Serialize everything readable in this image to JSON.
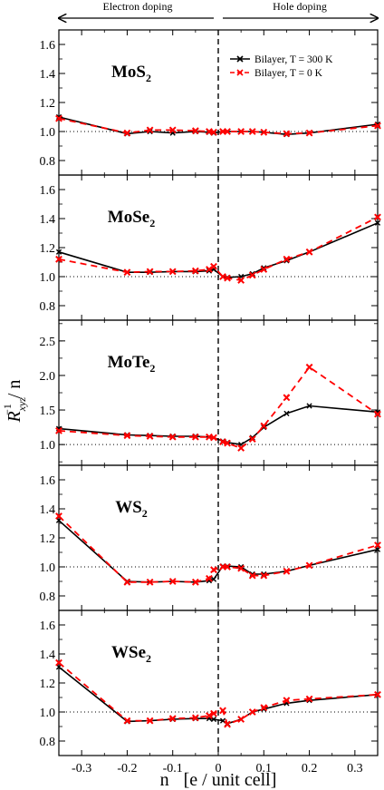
{
  "header": {
    "left": "Electron doping",
    "right": "Hole doping"
  },
  "xlabel_n": "n",
  "xlabel_rest": "[e / unit cell]",
  "ylabel": {
    "main": "R",
    "sup": "−1",
    "sub": "xyz",
    "suffix": "/ n"
  },
  "legend": [
    {
      "label": "Bilayer, T = 300 K",
      "color": "#000000",
      "dashed": false
    },
    {
      "label": "Bilayer, T = 0 K",
      "color": "#ff0000",
      "dashed": true
    }
  ],
  "chart_data": [
    {
      "type": "line",
      "name_main": "MoS",
      "name_sub": "2",
      "xlim": [
        -0.35,
        0.35
      ],
      "ylim": [
        0.7,
        1.7
      ],
      "yticks": [
        "0.8",
        "1.0",
        "1.2",
        "1.4",
        "1.6"
      ],
      "reference_line_y": 1.0,
      "series": [
        {
          "label": "Bilayer, T = 300 K",
          "x": [
            -0.35,
            -0.2,
            -0.15,
            -0.1,
            -0.05,
            -0.02,
            -0.01,
            0.01,
            0.02,
            0.05,
            0.075,
            0.1,
            0.15,
            0.2,
            0.35
          ],
          "y": [
            1.1,
            0.985,
            1.0,
            0.99,
            1.0,
            0.995,
            0.99,
            1.0,
            1.0,
            1.0,
            1.0,
            0.995,
            0.98,
            0.99,
            1.05
          ]
        },
        {
          "label": "Bilayer, T = 0 K",
          "x": [
            -0.35,
            -0.2,
            -0.15,
            -0.1,
            -0.05,
            -0.02,
            -0.01,
            0.01,
            0.02,
            0.05,
            0.075,
            0.1,
            0.15,
            0.2,
            0.35
          ],
          "y": [
            1.09,
            0.99,
            1.01,
            1.01,
            1.005,
            1.0,
            0.995,
            1.0,
            1.0,
            1.0,
            1.0,
            0.995,
            0.985,
            0.99,
            1.04
          ]
        }
      ]
    },
    {
      "type": "line",
      "name_main": "MoSe",
      "name_sub": "2",
      "xlim": [
        -0.35,
        0.35
      ],
      "ylim": [
        0.7,
        1.7
      ],
      "yticks": [
        "0.8",
        "1.0",
        "1.2",
        "1.4",
        "1.6"
      ],
      "reference_line_y": 1.0,
      "series": [
        {
          "label": "Bilayer, T = 300 K",
          "x": [
            -0.35,
            -0.2,
            -0.15,
            -0.1,
            -0.05,
            -0.02,
            -0.01,
            0.01,
            0.02,
            0.05,
            0.075,
            0.1,
            0.15,
            0.2,
            0.35
          ],
          "y": [
            1.17,
            1.03,
            1.03,
            1.035,
            1.035,
            1.04,
            1.05,
            1.0,
            0.995,
            1.0,
            1.02,
            1.06,
            1.11,
            1.17,
            1.37
          ]
        },
        {
          "label": "Bilayer, T = 0 K",
          "x": [
            -0.35,
            -0.2,
            -0.15,
            -0.1,
            -0.05,
            -0.02,
            -0.01,
            0.01,
            0.02,
            0.05,
            0.075,
            0.1,
            0.15,
            0.2,
            0.35
          ],
          "y": [
            1.12,
            1.03,
            1.035,
            1.035,
            1.04,
            1.05,
            1.07,
            1.0,
            0.99,
            0.975,
            1.01,
            1.05,
            1.12,
            1.17,
            1.41
          ]
        }
      ]
    },
    {
      "type": "line",
      "name_main": "MoTe",
      "name_sub": "2",
      "xlim": [
        -0.35,
        0.35
      ],
      "ylim": [
        0.7,
        2.8
      ],
      "yticks": [
        "1.0",
        "1.5",
        "2.0",
        "2.5"
      ],
      "reference_line_y": 1.0,
      "series": [
        {
          "label": "Bilayer, T = 300 K",
          "x": [
            -0.35,
            -0.2,
            -0.15,
            -0.1,
            -0.05,
            -0.02,
            -0.01,
            0.01,
            0.02,
            0.05,
            0.075,
            0.1,
            0.15,
            0.2,
            0.35
          ],
          "y": [
            1.23,
            1.14,
            1.13,
            1.12,
            1.12,
            1.11,
            1.1,
            1.05,
            1.03,
            1.0,
            1.1,
            1.25,
            1.45,
            1.56,
            1.47
          ]
        },
        {
          "label": "Bilayer, T = 0 K",
          "x": [
            -0.35,
            -0.2,
            -0.15,
            -0.1,
            -0.05,
            -0.02,
            -0.01,
            0.01,
            0.02,
            0.05,
            0.075,
            0.1,
            0.15,
            0.2,
            0.35
          ],
          "y": [
            1.2,
            1.13,
            1.12,
            1.11,
            1.11,
            1.11,
            1.1,
            1.04,
            1.02,
            0.95,
            1.08,
            1.27,
            1.68,
            2.12,
            1.44
          ]
        }
      ]
    },
    {
      "type": "line",
      "name_main": "WS",
      "name_sub": "2",
      "xlim": [
        -0.35,
        0.35
      ],
      "ylim": [
        0.7,
        1.7
      ],
      "yticks": [
        "0.8",
        "1.0",
        "1.2",
        "1.4",
        "1.6"
      ],
      "reference_line_y": 1.0,
      "series": [
        {
          "label": "Bilayer, T = 300 K",
          "x": [
            -0.35,
            -0.2,
            -0.15,
            -0.1,
            -0.05,
            -0.02,
            -0.01,
            0.01,
            0.02,
            0.05,
            0.075,
            0.1,
            0.15,
            0.2,
            0.35
          ],
          "y": [
            1.32,
            0.9,
            0.895,
            0.9,
            0.895,
            0.905,
            0.915,
            1.005,
            1.005,
            1.0,
            0.95,
            0.95,
            0.97,
            1.01,
            1.12
          ]
        },
        {
          "label": "Bilayer, T = 0 K",
          "x": [
            -0.35,
            -0.2,
            -0.15,
            -0.1,
            -0.05,
            -0.02,
            -0.01,
            0.01,
            0.02,
            0.05,
            0.075,
            0.1,
            0.15,
            0.2,
            0.35
          ],
          "y": [
            1.35,
            0.895,
            0.895,
            0.9,
            0.895,
            0.92,
            0.98,
            1.0,
            1.0,
            0.99,
            0.94,
            0.94,
            0.97,
            1.01,
            1.15
          ]
        }
      ]
    },
    {
      "type": "line",
      "name_main": "WSe",
      "name_sub": "2",
      "xlim": [
        -0.35,
        0.35
      ],
      "ylim": [
        0.7,
        1.7
      ],
      "yticks": [
        "0.8",
        "1.0",
        "1.2",
        "1.4",
        "1.6"
      ],
      "xticks": [
        "-0.3",
        "-0.2",
        "-0.1",
        "0",
        "0.1",
        "0.2",
        "0.3"
      ],
      "reference_line_y": 1.0,
      "series": [
        {
          "label": "Bilayer, T = 300 K",
          "x": [
            -0.35,
            -0.2,
            -0.15,
            -0.1,
            -0.05,
            -0.02,
            -0.01,
            0.01,
            0.02,
            0.05,
            0.075,
            0.1,
            0.15,
            0.2,
            0.35
          ],
          "y": [
            1.31,
            0.935,
            0.94,
            0.95,
            0.955,
            0.955,
            0.95,
            0.94,
            0.92,
            0.95,
            1.0,
            1.02,
            1.06,
            1.08,
            1.12
          ]
        },
        {
          "label": "Bilayer, T = 0 K",
          "x": [
            -0.35,
            -0.2,
            -0.15,
            -0.1,
            -0.05,
            -0.02,
            -0.01,
            0.01,
            0.02,
            0.05,
            0.075,
            0.1,
            0.15,
            0.2,
            0.35
          ],
          "y": [
            1.34,
            0.94,
            0.94,
            0.955,
            0.96,
            0.975,
            0.99,
            1.01,
            0.915,
            0.95,
            1.0,
            1.03,
            1.08,
            1.09,
            1.12
          ]
        }
      ]
    }
  ]
}
